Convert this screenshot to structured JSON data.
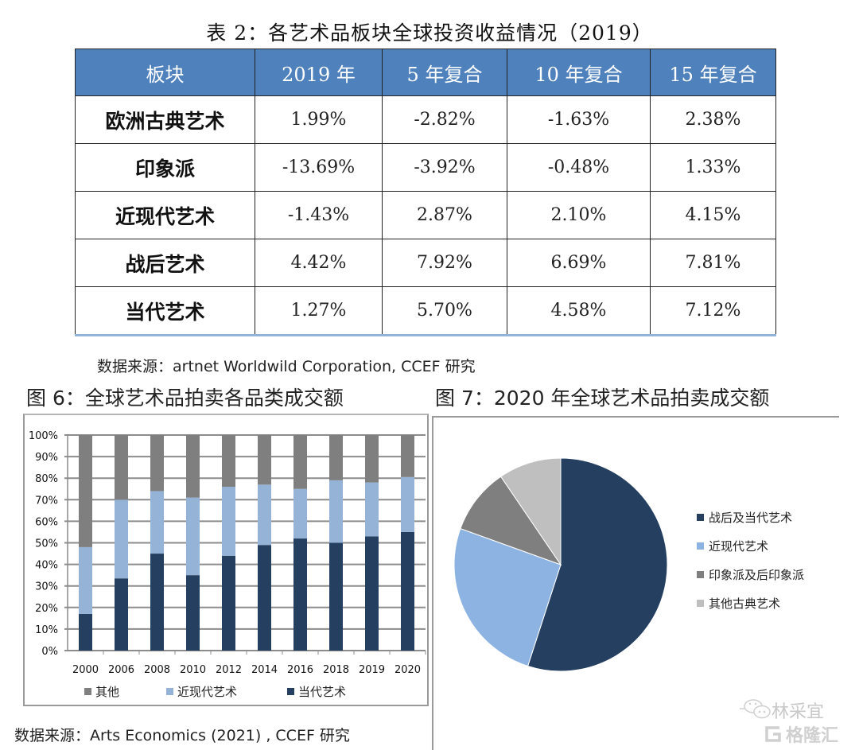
{
  "table": {
    "title": "表 2：各艺术品板块全球投资收益情况（2019）",
    "headers": [
      "板块",
      "2019 年",
      "5 年复合",
      "10 年复合",
      "15 年复合"
    ],
    "rows": [
      {
        "name": "欧洲古典艺术",
        "values": [
          "1.99%",
          "-2.82%",
          "-1.63%",
          "2.38%"
        ]
      },
      {
        "name": "印象派",
        "values": [
          "-13.69%",
          "-3.92%",
          "-0.48%",
          "1.33%"
        ]
      },
      {
        "name": "近现代艺术",
        "values": [
          "-1.43%",
          "2.87%",
          "2.10%",
          "4.15%"
        ]
      },
      {
        "name": "战后艺术",
        "values": [
          "4.42%",
          "7.92%",
          "6.69%",
          "7.81%"
        ]
      },
      {
        "name": "当代艺术",
        "values": [
          "1.27%",
          "5.70%",
          "4.58%",
          "7.12%"
        ]
      }
    ],
    "header_color": "#4f81bd",
    "source": "数据来源：artnet Worldwild Corporation, CCEF 研究"
  },
  "figure6_title": "图 6：全球艺术品拍卖各品类成交额",
  "figure7_title": "图 7：2020 年全球艺术品拍卖成交额",
  "bottom_source": "数据来源：Arts Economics (2021) , CCEF 研究",
  "watermark": {
    "line1": "林采宜",
    "line2": "格隆汇"
  },
  "chart_data": [
    {
      "type": "bar",
      "stacked": true,
      "title": "图 6：全球艺术品拍卖各品类成交额",
      "categories": [
        "2000",
        "2006",
        "2008",
        "2010",
        "2012",
        "2014",
        "2016",
        "2018",
        "2019",
        "2020"
      ],
      "series": [
        {
          "name": "当代艺术",
          "color": "#243f60",
          "values": [
            17,
            33.5,
            45,
            35,
            44,
            49,
            52,
            50,
            53,
            55
          ]
        },
        {
          "name": "近现代艺术",
          "color": "#95b3d7",
          "values": [
            31,
            36.5,
            29,
            36,
            32,
            28,
            23,
            29,
            25,
            25.5
          ]
        },
        {
          "name": "其他",
          "color": "#7f7f7f",
          "values": [
            52,
            30,
            26,
            29,
            24,
            23,
            25,
            21,
            22,
            19.5
          ]
        }
      ],
      "legend_order": [
        "其他",
        "近现代艺术",
        "当代艺术"
      ],
      "ylim": [
        0,
        100
      ],
      "yticks": [
        "0%",
        "10%",
        "20%",
        "30%",
        "40%",
        "50%",
        "60%",
        "70%",
        "80%",
        "90%",
        "100%"
      ],
      "xlabel": "",
      "ylabel": "",
      "grid": true,
      "legend_position": "bottom"
    },
    {
      "type": "pie",
      "title": "图 7：2020 年全球艺术品拍卖成交额",
      "slices": [
        {
          "label": "战后及当代艺术",
          "value": 55,
          "color": "#243f60"
        },
        {
          "label": "近现代艺术",
          "value": 25.5,
          "color": "#8db3e2"
        },
        {
          "label": "印象派及后印象派",
          "value": 10,
          "color": "#7f7f7f"
        },
        {
          "label": "其他古典艺术",
          "value": 9.5,
          "color": "#bfbfbf"
        }
      ],
      "start_angle": "12 o'clock",
      "direction": "clockwise",
      "legend_position": "right"
    }
  ]
}
